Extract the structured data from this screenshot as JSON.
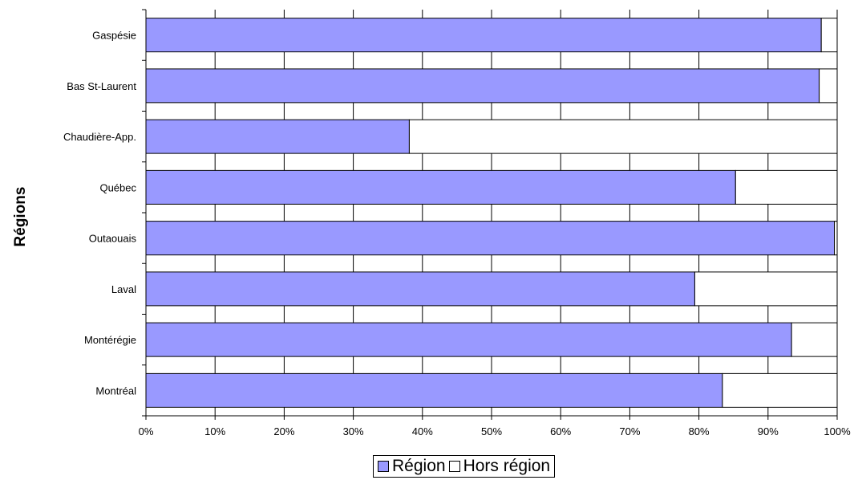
{
  "chart_data": {
    "type": "bar",
    "orientation": "horizontal",
    "stacked": true,
    "categories": [
      "Gaspésie",
      "Bas St-Laurent",
      "Chaudière-App.",
      "Québec",
      "Outaouais",
      "Laval",
      "Montérégie",
      "Montréal"
    ],
    "series": [
      {
        "name": "Région",
        "values": [
          97.7,
          97.4,
          38.1,
          85.3,
          99.6,
          79.4,
          93.4,
          83.4
        ],
        "color": "#9999ff"
      },
      {
        "name": "Hors région",
        "values": [
          2.3,
          2.6,
          61.9,
          14.7,
          0.4,
          20.6,
          6.6,
          16.6
        ],
        "color": "#ffffff"
      }
    ],
    "xlim": [
      0,
      100
    ],
    "xticks": [
      "0%",
      "10%",
      "20%",
      "30%",
      "40%",
      "50%",
      "60%",
      "70%",
      "80%",
      "90%",
      "100%"
    ],
    "ylabel": "Régions",
    "grid": "vertical",
    "legend_position": "bottom"
  }
}
